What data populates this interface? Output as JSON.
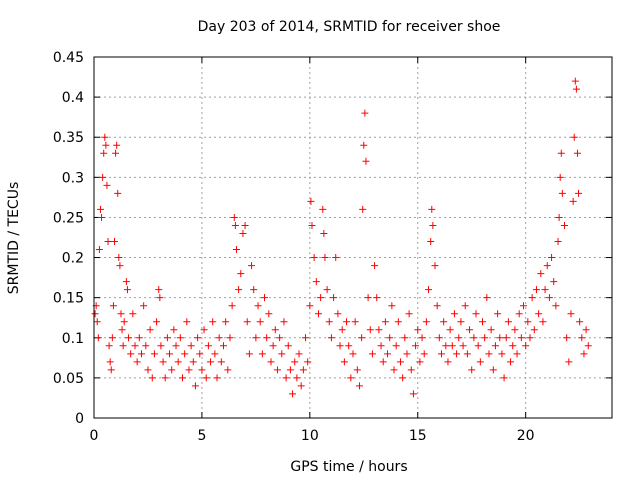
{
  "chart_data": {
    "type": "scatter",
    "title": "Day 203 of 2014, SRMTID for receiver shoe",
    "xlabel": "GPS time / hours",
    "ylabel": "SRMTID / TECUs",
    "xlim": [
      0,
      24
    ],
    "ylim": [
      0,
      0.45
    ],
    "x_ticks": [
      0,
      5,
      10,
      15,
      20
    ],
    "x_tick_labels": [
      "0",
      "5",
      "10",
      "15",
      "20"
    ],
    "y_ticks": [
      0,
      0.05,
      0.1,
      0.15,
      0.2,
      0.25,
      0.3,
      0.35,
      0.4,
      0.45
    ],
    "y_tick_labels": [
      "0",
      "0.05",
      "0.1",
      "0.15",
      "0.2",
      "0.25",
      "0.3",
      "0.35",
      "0.4",
      "0.45"
    ],
    "grid": true,
    "marker": "plus",
    "marker_color": "#ff0000",
    "series": [
      {
        "name": "SRMTID",
        "points": [
          [
            0.05,
            0.13
          ],
          [
            0.1,
            0.14
          ],
          [
            0.15,
            0.12
          ],
          [
            0.2,
            0.1
          ],
          [
            0.25,
            0.21
          ],
          [
            0.3,
            0.26
          ],
          [
            0.35,
            0.25
          ],
          [
            0.4,
            0.3
          ],
          [
            0.45,
            0.33
          ],
          [
            0.5,
            0.35
          ],
          [
            0.55,
            0.34
          ],
          [
            0.6,
            0.29
          ],
          [
            0.65,
            0.22
          ],
          [
            0.7,
            0.09
          ],
          [
            0.75,
            0.07
          ],
          [
            0.8,
            0.06
          ],
          [
            0.85,
            0.1
          ],
          [
            0.9,
            0.14
          ],
          [
            0.95,
            0.22
          ],
          [
            1.0,
            0.33
          ],
          [
            1.05,
            0.34
          ],
          [
            1.1,
            0.28
          ],
          [
            1.15,
            0.2
          ],
          [
            1.2,
            0.19
          ],
          [
            1.25,
            0.13
          ],
          [
            1.3,
            0.11
          ],
          [
            1.35,
            0.09
          ],
          [
            1.4,
            0.12
          ],
          [
            1.5,
            0.17
          ],
          [
            1.55,
            0.16
          ],
          [
            1.6,
            0.1
          ],
          [
            1.7,
            0.08
          ],
          [
            1.8,
            0.13
          ],
          [
            1.9,
            0.09
          ],
          [
            2.0,
            0.07
          ],
          [
            2.1,
            0.1
          ],
          [
            2.2,
            0.08
          ],
          [
            2.3,
            0.14
          ],
          [
            2.4,
            0.09
          ],
          [
            2.5,
            0.06
          ],
          [
            2.6,
            0.11
          ],
          [
            2.7,
            0.05
          ],
          [
            2.8,
            0.08
          ],
          [
            2.9,
            0.12
          ],
          [
            3.0,
            0.16
          ],
          [
            3.05,
            0.15
          ],
          [
            3.1,
            0.09
          ],
          [
            3.2,
            0.07
          ],
          [
            3.3,
            0.05
          ],
          [
            3.4,
            0.1
          ],
          [
            3.5,
            0.08
          ],
          [
            3.6,
            0.06
          ],
          [
            3.7,
            0.11
          ],
          [
            3.8,
            0.09
          ],
          [
            3.9,
            0.07
          ],
          [
            4.0,
            0.1
          ],
          [
            4.1,
            0.05
          ],
          [
            4.2,
            0.08
          ],
          [
            4.3,
            0.12
          ],
          [
            4.4,
            0.06
          ],
          [
            4.5,
            0.09
          ],
          [
            4.6,
            0.07
          ],
          [
            4.7,
            0.04
          ],
          [
            4.8,
            0.1
          ],
          [
            4.9,
            0.08
          ],
          [
            5.0,
            0.06
          ],
          [
            5.1,
            0.11
          ],
          [
            5.2,
            0.05
          ],
          [
            5.3,
            0.09
          ],
          [
            5.4,
            0.07
          ],
          [
            5.5,
            0.12
          ],
          [
            5.6,
            0.08
          ],
          [
            5.7,
            0.05
          ],
          [
            5.8,
            0.1
          ],
          [
            5.9,
            0.07
          ],
          [
            6.0,
            0.09
          ],
          [
            6.1,
            0.12
          ],
          [
            6.2,
            0.06
          ],
          [
            6.3,
            0.1
          ],
          [
            6.4,
            0.14
          ],
          [
            6.5,
            0.25
          ],
          [
            6.55,
            0.24
          ],
          [
            6.6,
            0.21
          ],
          [
            6.7,
            0.16
          ],
          [
            6.8,
            0.18
          ],
          [
            6.9,
            0.23
          ],
          [
            7.0,
            0.24
          ],
          [
            7.1,
            0.12
          ],
          [
            7.2,
            0.08
          ],
          [
            7.3,
            0.19
          ],
          [
            7.4,
            0.16
          ],
          [
            7.5,
            0.1
          ],
          [
            7.6,
            0.14
          ],
          [
            7.7,
            0.12
          ],
          [
            7.8,
            0.08
          ],
          [
            7.9,
            0.15
          ],
          [
            8.0,
            0.1
          ],
          [
            8.1,
            0.13
          ],
          [
            8.2,
            0.07
          ],
          [
            8.3,
            0.09
          ],
          [
            8.4,
            0.11
          ],
          [
            8.5,
            0.06
          ],
          [
            8.6,
            0.1
          ],
          [
            8.7,
            0.08
          ],
          [
            8.8,
            0.12
          ],
          [
            8.9,
            0.05
          ],
          [
            9.0,
            0.09
          ],
          [
            9.1,
            0.06
          ],
          [
            9.2,
            0.03
          ],
          [
            9.3,
            0.07
          ],
          [
            9.4,
            0.05
          ],
          [
            9.5,
            0.08
          ],
          [
            9.6,
            0.04
          ],
          [
            9.7,
            0.06
          ],
          [
            9.8,
            0.1
          ],
          [
            9.9,
            0.07
          ],
          [
            10.0,
            0.14
          ],
          [
            10.05,
            0.27
          ],
          [
            10.1,
            0.24
          ],
          [
            10.2,
            0.2
          ],
          [
            10.3,
            0.17
          ],
          [
            10.4,
            0.13
          ],
          [
            10.5,
            0.15
          ],
          [
            10.6,
            0.26
          ],
          [
            10.65,
            0.23
          ],
          [
            10.7,
            0.2
          ],
          [
            10.8,
            0.16
          ],
          [
            10.9,
            0.12
          ],
          [
            11.0,
            0.1
          ],
          [
            11.1,
            0.15
          ],
          [
            11.2,
            0.2
          ],
          [
            11.3,
            0.13
          ],
          [
            11.4,
            0.09
          ],
          [
            11.5,
            0.11
          ],
          [
            11.6,
            0.07
          ],
          [
            11.7,
            0.12
          ],
          [
            11.8,
            0.09
          ],
          [
            11.9,
            0.05
          ],
          [
            12.0,
            0.08
          ],
          [
            12.1,
            0.12
          ],
          [
            12.2,
            0.06
          ],
          [
            12.3,
            0.04
          ],
          [
            12.4,
            0.1
          ],
          [
            12.45,
            0.26
          ],
          [
            12.5,
            0.34
          ],
          [
            12.55,
            0.38
          ],
          [
            12.6,
            0.32
          ],
          [
            12.7,
            0.15
          ],
          [
            12.8,
            0.11
          ],
          [
            12.9,
            0.08
          ],
          [
            13.0,
            0.19
          ],
          [
            13.1,
            0.15
          ],
          [
            13.2,
            0.11
          ],
          [
            13.3,
            0.09
          ],
          [
            13.4,
            0.07
          ],
          [
            13.5,
            0.12
          ],
          [
            13.6,
            0.08
          ],
          [
            13.7,
            0.1
          ],
          [
            13.8,
            0.14
          ],
          [
            13.9,
            0.06
          ],
          [
            14.0,
            0.09
          ],
          [
            14.1,
            0.12
          ],
          [
            14.2,
            0.07
          ],
          [
            14.3,
            0.05
          ],
          [
            14.4,
            0.1
          ],
          [
            14.5,
            0.08
          ],
          [
            14.6,
            0.13
          ],
          [
            14.7,
            0.06
          ],
          [
            14.8,
            0.03
          ],
          [
            14.9,
            0.09
          ],
          [
            15.0,
            0.11
          ],
          [
            15.1,
            0.07
          ],
          [
            15.2,
            0.1
          ],
          [
            15.3,
            0.08
          ],
          [
            15.4,
            0.12
          ],
          [
            15.5,
            0.16
          ],
          [
            15.6,
            0.22
          ],
          [
            15.65,
            0.26
          ],
          [
            15.7,
            0.24
          ],
          [
            15.8,
            0.19
          ],
          [
            15.9,
            0.14
          ],
          [
            16.0,
            0.1
          ],
          [
            16.1,
            0.08
          ],
          [
            16.2,
            0.12
          ],
          [
            16.3,
            0.09
          ],
          [
            16.4,
            0.07
          ],
          [
            16.5,
            0.11
          ],
          [
            16.6,
            0.09
          ],
          [
            16.7,
            0.13
          ],
          [
            16.8,
            0.08
          ],
          [
            16.9,
            0.1
          ],
          [
            17.0,
            0.12
          ],
          [
            17.1,
            0.09
          ],
          [
            17.2,
            0.14
          ],
          [
            17.3,
            0.08
          ],
          [
            17.4,
            0.11
          ],
          [
            17.5,
            0.06
          ],
          [
            17.6,
            0.1
          ],
          [
            17.7,
            0.13
          ],
          [
            17.8,
            0.09
          ],
          [
            17.9,
            0.07
          ],
          [
            18.0,
            0.12
          ],
          [
            18.1,
            0.1
          ],
          [
            18.2,
            0.15
          ],
          [
            18.3,
            0.08
          ],
          [
            18.4,
            0.11
          ],
          [
            18.5,
            0.06
          ],
          [
            18.6,
            0.09
          ],
          [
            18.7,
            0.13
          ],
          [
            18.8,
            0.1
          ],
          [
            18.9,
            0.08
          ],
          [
            19.0,
            0.05
          ],
          [
            19.1,
            0.1
          ],
          [
            19.2,
            0.12
          ],
          [
            19.3,
            0.07
          ],
          [
            19.4,
            0.09
          ],
          [
            19.5,
            0.11
          ],
          [
            19.6,
            0.08
          ],
          [
            19.7,
            0.13
          ],
          [
            19.8,
            0.1
          ],
          [
            19.9,
            0.14
          ],
          [
            20.0,
            0.09
          ],
          [
            20.1,
            0.12
          ],
          [
            20.2,
            0.1
          ],
          [
            20.3,
            0.15
          ],
          [
            20.4,
            0.11
          ],
          [
            20.5,
            0.16
          ],
          [
            20.6,
            0.13
          ],
          [
            20.7,
            0.18
          ],
          [
            20.8,
            0.12
          ],
          [
            20.9,
            0.16
          ],
          [
            21.0,
            0.19
          ],
          [
            21.1,
            0.15
          ],
          [
            21.2,
            0.2
          ],
          [
            21.3,
            0.17
          ],
          [
            21.4,
            0.14
          ],
          [
            21.5,
            0.22
          ],
          [
            21.55,
            0.25
          ],
          [
            21.6,
            0.3
          ],
          [
            21.65,
            0.33
          ],
          [
            21.7,
            0.28
          ],
          [
            21.8,
            0.24
          ],
          [
            21.9,
            0.1
          ],
          [
            22.0,
            0.07
          ],
          [
            22.1,
            0.13
          ],
          [
            22.2,
            0.27
          ],
          [
            22.25,
            0.35
          ],
          [
            22.3,
            0.42
          ],
          [
            22.35,
            0.41
          ],
          [
            22.4,
            0.33
          ],
          [
            22.45,
            0.28
          ],
          [
            22.5,
            0.12
          ],
          [
            22.6,
            0.1
          ],
          [
            22.7,
            0.08
          ],
          [
            22.8,
            0.11
          ],
          [
            22.9,
            0.09
          ]
        ]
      }
    ]
  }
}
